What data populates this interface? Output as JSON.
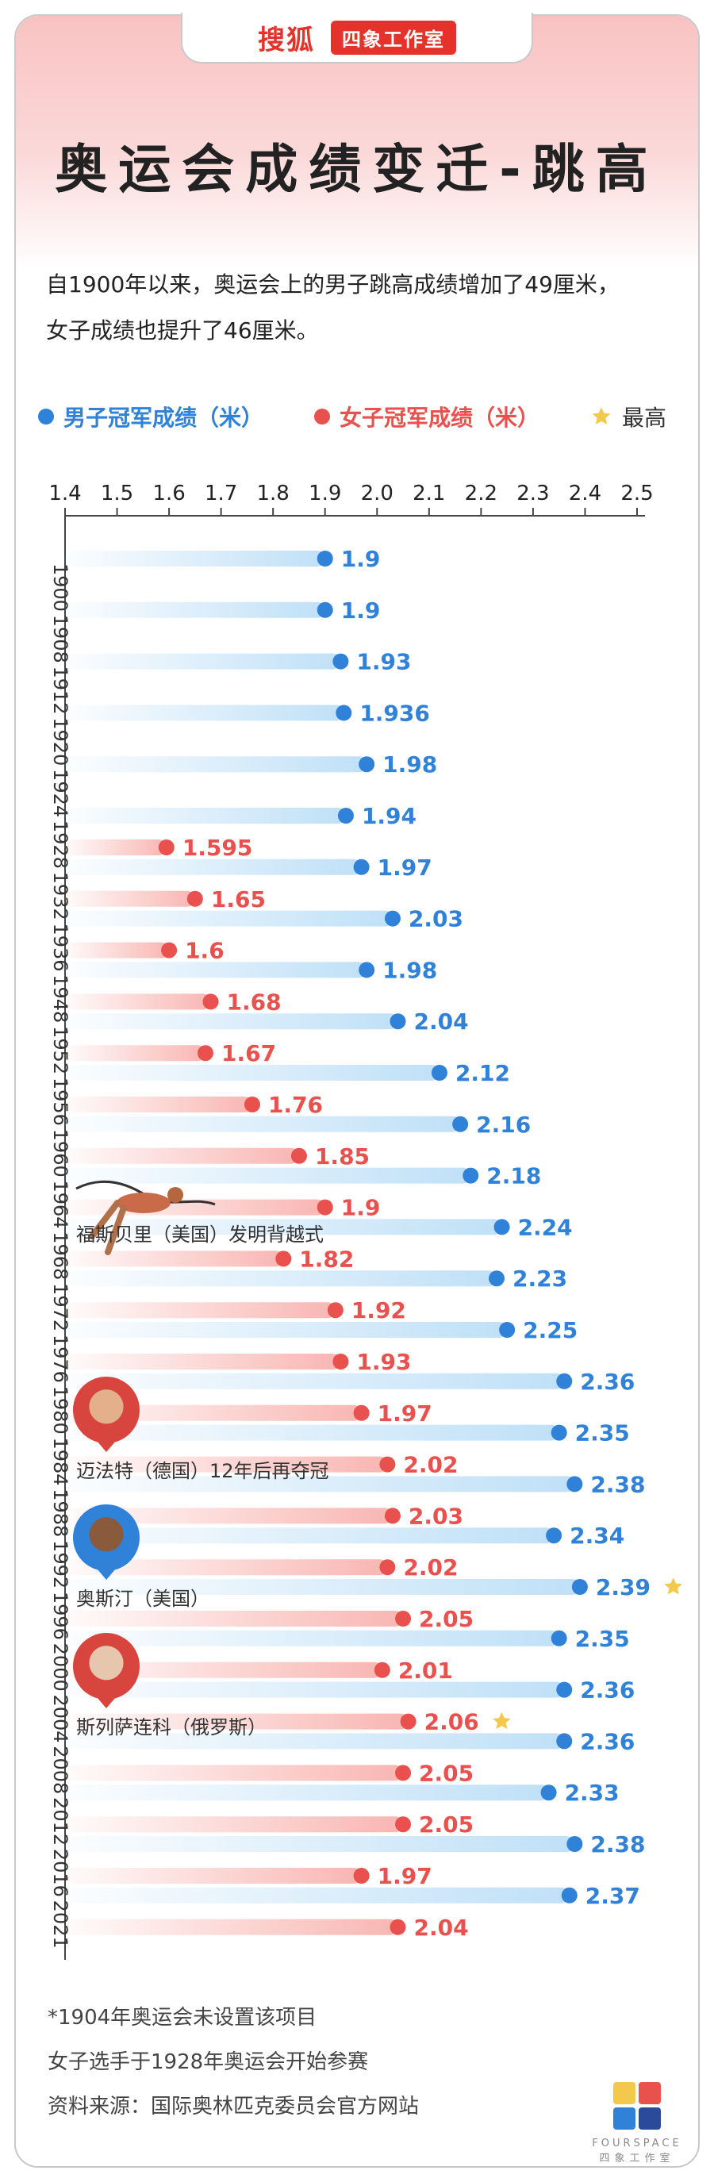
{
  "header": {
    "brand": "搜狐",
    "studio": "四象工作室"
  },
  "title": "奥运会成绩变迁-跳高",
  "intro": {
    "line1": "自1900年以来，奥运会上的男子跳高成绩增加了49厘米，",
    "line2": "女子成绩也提升了46厘米。"
  },
  "legend": {
    "men": "男子冠军成绩（米）",
    "women": "女子冠军成绩（米）",
    "max": "最高"
  },
  "colors": {
    "men": "#2f82d8",
    "men_bar": "#bfe0f7",
    "women": "#e8514d",
    "women_bar": "#f8b6b2",
    "star": "#f2c94c"
  },
  "annotations": {
    "fosbury": "福斯贝里（美国）发明背越式",
    "meyfarth": "迈法特（德国）12年后再夺冠",
    "sotomayor": "奥斯汀（美国）",
    "slesarenko": "斯列萨连科（俄罗斯）"
  },
  "chart_data": {
    "type": "bar",
    "title": "奥运会成绩变迁-跳高",
    "x_ticks": [
      1.4,
      1.5,
      1.6,
      1.7,
      1.8,
      1.9,
      2.0,
      2.1,
      2.2,
      2.3,
      2.4,
      2.5
    ],
    "xlim": [
      1.4,
      2.5
    ],
    "categories": [
      "1900",
      "1908",
      "1912",
      "1920",
      "1924",
      "1928",
      "1932",
      "1936",
      "1948",
      "1952",
      "1956",
      "1960",
      "1964",
      "1968",
      "1972",
      "1976",
      "1980",
      "1984",
      "1988",
      "1992",
      "1996",
      "2000",
      "2004",
      "2008",
      "2012",
      "2016",
      "2021"
    ],
    "series": [
      {
        "name": "男子冠军成绩（米）",
        "values": [
          1.9,
          1.9,
          1.93,
          1.936,
          1.98,
          1.94,
          1.97,
          2.03,
          1.98,
          2.04,
          2.12,
          2.16,
          2.18,
          2.24,
          2.23,
          2.25,
          2.36,
          2.35,
          2.38,
          2.34,
          2.39,
          2.35,
          2.36,
          2.36,
          2.33,
          2.38,
          2.37
        ]
      },
      {
        "name": "女子冠军成绩（米）",
        "values": [
          null,
          null,
          null,
          null,
          null,
          1.595,
          1.65,
          1.6,
          1.68,
          1.67,
          1.76,
          1.85,
          1.9,
          1.82,
          1.92,
          1.93,
          1.97,
          2.02,
          2.03,
          2.02,
          2.05,
          2.01,
          2.06,
          2.05,
          2.05,
          1.97,
          2.04
        ]
      }
    ],
    "max_markers": {
      "men": "1996",
      "women": "2004"
    }
  },
  "footnotes": {
    "note1": "*1904年奥运会未设置该项目",
    "note2": "女子选手于1928年奥运会开始参赛",
    "source": "资料来源：国际奥林匹克委员会官方网站"
  },
  "logo": {
    "en": "FOURSPACE",
    "cn": "四象工作室"
  }
}
